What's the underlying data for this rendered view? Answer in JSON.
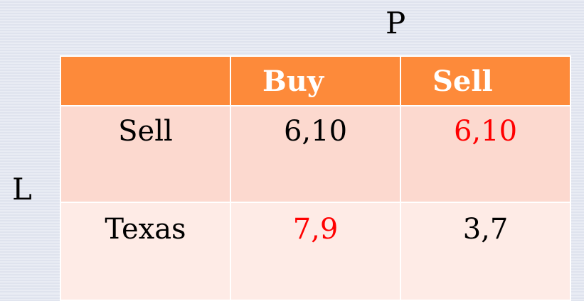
{
  "players": {
    "column": "P",
    "row": "L"
  },
  "table": {
    "header": [
      "",
      "Buy",
      "Sell"
    ],
    "rows": [
      {
        "label": "Sell",
        "cells": [
          {
            "value": "6,10",
            "highlight": false
          },
          {
            "value": "6,10",
            "highlight": true
          }
        ]
      },
      {
        "label": "Texas",
        "cells": [
          {
            "value": "7,9",
            "highlight": true
          },
          {
            "value": "3,7",
            "highlight": false
          }
        ]
      }
    ]
  },
  "colors": {
    "header_bg": "#fd8a3a",
    "row1_bg": "#fcd9cf",
    "row2_bg": "#feebe6",
    "highlight_text": "#ff0000"
  }
}
